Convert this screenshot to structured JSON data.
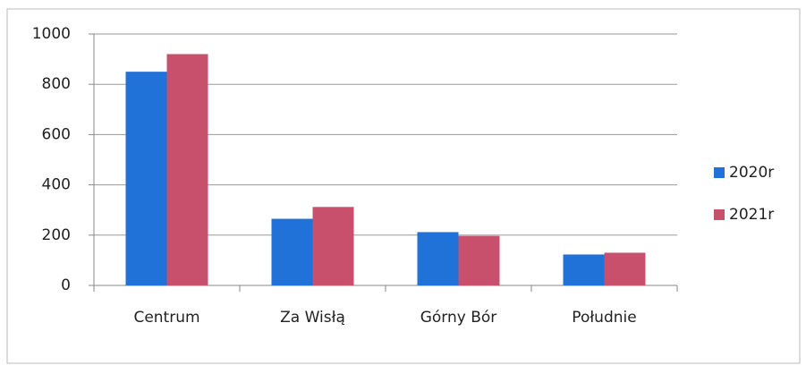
{
  "chart_data": {
    "type": "bar",
    "categories": [
      "Centrum",
      "Za Wisłą",
      "Górny Bór",
      "Południe"
    ],
    "series": [
      {
        "name": "2020r",
        "color": "#2072d8",
        "values": [
          850,
          265,
          212,
          123
        ]
      },
      {
        "name": "2021r",
        "color": "#c9506c",
        "values": [
          920,
          312,
          197,
          130
        ]
      }
    ],
    "ylim": [
      0,
      1000
    ],
    "yticks": [
      0,
      200,
      400,
      600,
      800,
      1000
    ],
    "grid": true,
    "legend": "right"
  }
}
